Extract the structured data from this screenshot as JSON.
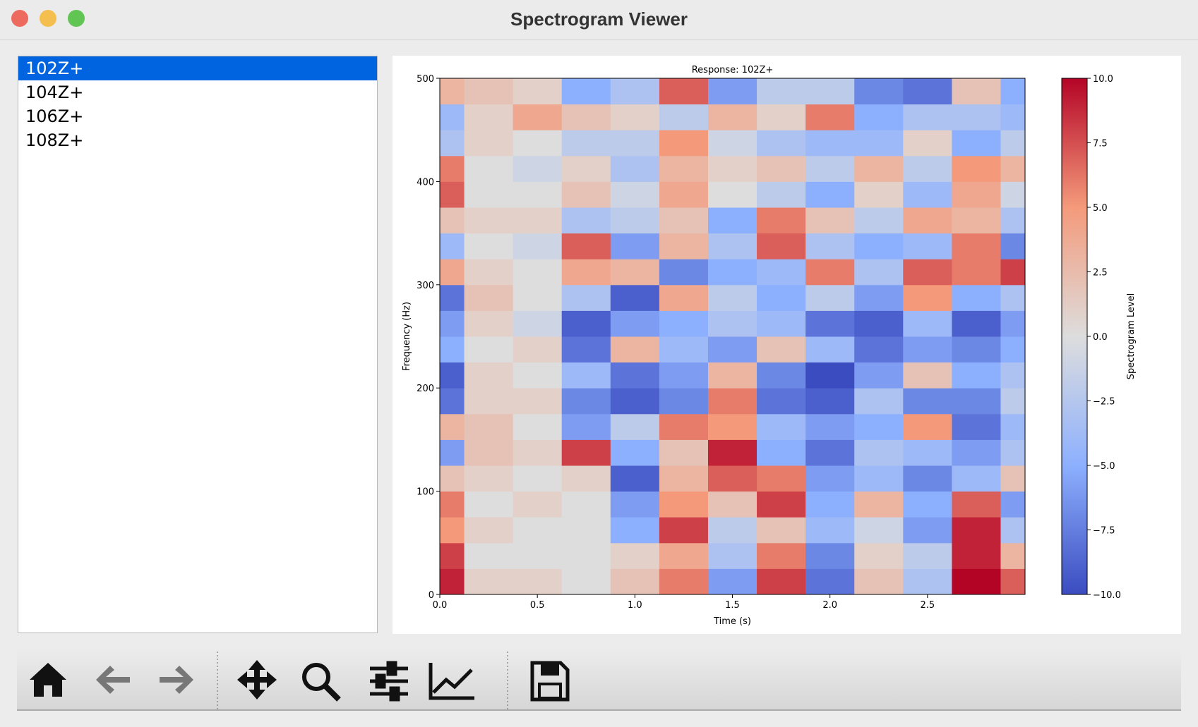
{
  "window": {
    "title": "Spectrogram Viewer"
  },
  "list": {
    "items": [
      "102Z+",
      "104Z+",
      "106Z+",
      "108Z+"
    ],
    "selected": 0
  },
  "chart_data": {
    "type": "heatmap",
    "title": "Response: 102Z+",
    "xlabel": "Time (s)",
    "ylabel": "Frequency (Hz)",
    "colorbar_label": "Spectrogram Level",
    "x": [
      0,
      0.25,
      0.5,
      0.75,
      1.0,
      1.25,
      1.5,
      1.75,
      2.0,
      2.25,
      2.5,
      2.75,
      3.0
    ],
    "y": [
      12.5,
      37.5,
      62.5,
      87.5,
      112.5,
      137.5,
      162.5,
      187.5,
      212.5,
      237.5,
      262.5,
      287.5,
      312.5,
      337.5,
      362.5,
      387.5,
      412.5,
      437.5,
      462.5,
      487.5
    ],
    "z": [
      [
        9,
        1,
        1,
        0,
        2,
        6,
        -6,
        8,
        -8,
        2,
        -3,
        10,
        7
      ],
      [
        8,
        0,
        0,
        0,
        1,
        4,
        -3,
        6,
        -7,
        1,
        -2,
        9,
        3
      ],
      [
        5,
        1,
        0,
        0,
        -5,
        8,
        -2,
        2,
        -4,
        -1,
        -6,
        9,
        -3
      ],
      [
        6,
        0,
        1,
        0,
        -6,
        5,
        2,
        8,
        -5,
        3,
        -5,
        7,
        -6
      ],
      [
        2,
        1,
        0,
        1,
        -9,
        3,
        7,
        6,
        -6,
        -4,
        -7,
        -4,
        2
      ],
      [
        -6,
        2,
        1,
        8,
        -5,
        2,
        9,
        -5,
        -8,
        -3,
        -4,
        -6,
        -3
      ],
      [
        3,
        2,
        0,
        -6,
        -2,
        6,
        5,
        -4,
        -6,
        -5,
        5,
        -8,
        -4
      ],
      [
        -8,
        1,
        1,
        -7,
        -9,
        -7,
        6,
        -8,
        -9,
        -3,
        -7,
        -7,
        -2
      ],
      [
        -9,
        1,
        0,
        -4,
        -8,
        -6,
        3,
        -7,
        -10,
        -6,
        2,
        -5,
        -3
      ],
      [
        -5,
        0,
        1,
        -8,
        3,
        -4,
        -6,
        2,
        -4,
        -8,
        -6,
        -7,
        -5
      ],
      [
        -6,
        1,
        -1,
        -9,
        -6,
        -5,
        -3,
        -4,
        -8,
        -9,
        -4,
        -9,
        -6
      ],
      [
        -8,
        2,
        0,
        -3,
        -9,
        4,
        -2,
        -5,
        -2,
        -6,
        5,
        -5,
        -3
      ],
      [
        4,
        1,
        0,
        4,
        3,
        -7,
        -5,
        -4,
        6,
        -3,
        7,
        6,
        8
      ],
      [
        -4,
        0,
        -1,
        7,
        -6,
        3,
        -3,
        7,
        -3,
        -5,
        -4,
        6,
        -7
      ],
      [
        2,
        1,
        1,
        -3,
        -2,
        2,
        -5,
        6,
        2,
        -2,
        4,
        3,
        -3
      ],
      [
        7,
        0,
        0,
        2,
        -1,
        4,
        0,
        -2,
        -5,
        1,
        -4,
        4,
        -1
      ],
      [
        6,
        0,
        -1,
        1,
        -3,
        3,
        1,
        2,
        -2,
        3,
        -2,
        5,
        3
      ],
      [
        -3,
        1,
        0,
        -2,
        -2,
        5,
        -1,
        -3,
        -4,
        -4,
        1,
        -5,
        -2
      ],
      [
        -4,
        1,
        4,
        2,
        1,
        -2,
        3,
        1,
        6,
        -5,
        -3,
        -3,
        -4
      ],
      [
        3,
        2,
        1,
        -5,
        -3,
        7,
        -6,
        -2,
        -2,
        -7,
        -8,
        2,
        -5
      ]
    ],
    "xlim": [
      0,
      3.0
    ],
    "ylim": [
      0,
      500
    ],
    "clim": [
      -10,
      10
    ],
    "colormap": [
      "#3b4cc0",
      "#8db0fe",
      "#dddddd",
      "#f49a7b",
      "#b40426"
    ],
    "xticks": [
      {
        "value": 0,
        "label": "0.0"
      },
      {
        "value": 0.5,
        "label": "0.5"
      },
      {
        "value": 1.0,
        "label": "1.0"
      },
      {
        "value": 1.5,
        "label": "1.5"
      },
      {
        "value": 2.0,
        "label": "2.0"
      },
      {
        "value": 2.5,
        "label": "2.5"
      }
    ],
    "yticks": [
      0,
      100,
      200,
      300,
      400,
      500
    ],
    "cticks": [
      {
        "value": -10,
        "label": "−10.0"
      },
      {
        "value": -7.5,
        "label": "−7.5"
      },
      {
        "value": -5,
        "label": "−5.0"
      },
      {
        "value": -2.5,
        "label": "−2.5"
      },
      {
        "value": 0,
        "label": "0.0"
      },
      {
        "value": 2.5,
        "label": "2.5"
      },
      {
        "value": 5,
        "label": "5.0"
      },
      {
        "value": 7.5,
        "label": "7.5"
      },
      {
        "value": 10,
        "label": "10.0"
      }
    ]
  }
}
